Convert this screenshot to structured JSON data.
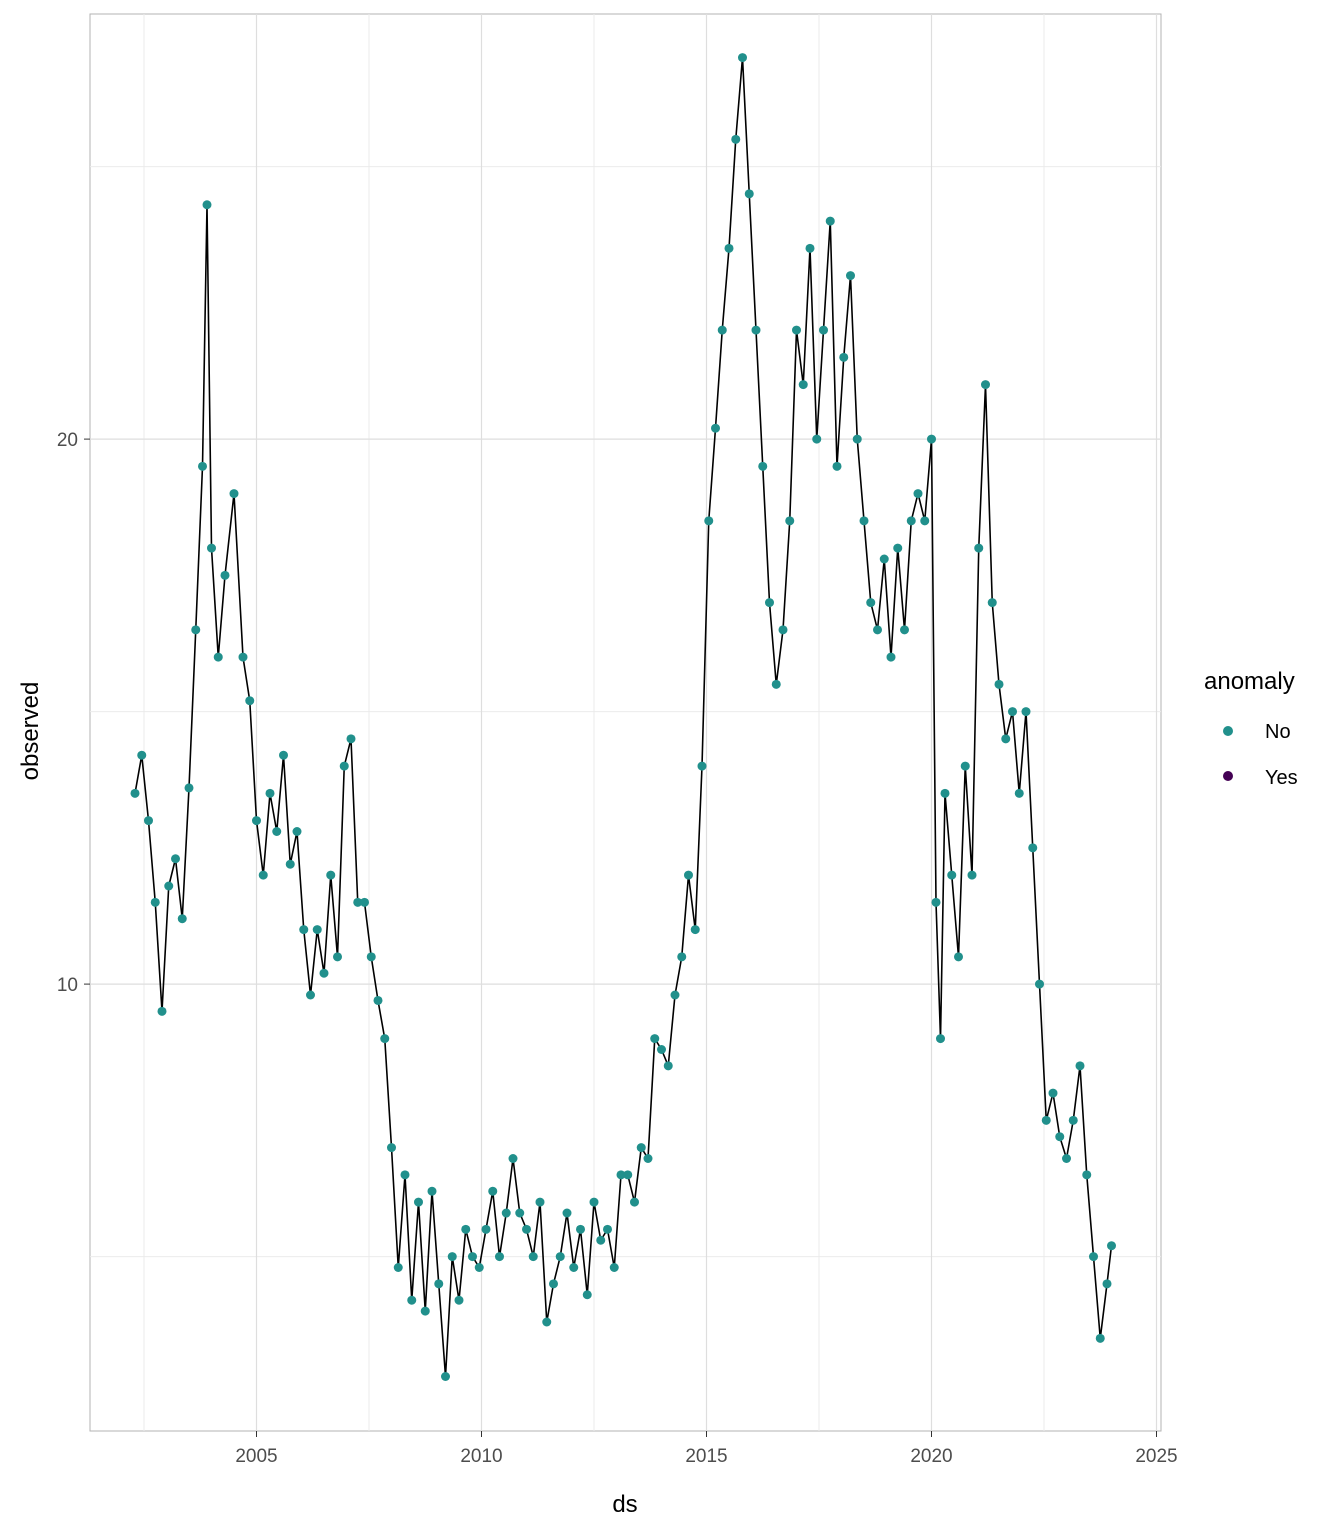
{
  "chart_data": {
    "type": "line",
    "title": "",
    "xlabel": "ds",
    "ylabel": "observed",
    "xlim": [
      2001.3,
      2025.1
    ],
    "ylim": [
      1.8,
      27.8
    ],
    "x_ticks": [
      2005,
      2010,
      2015,
      2020,
      2025
    ],
    "x_tick_labels": [
      "2005",
      "2010",
      "2015",
      "2020",
      "2025"
    ],
    "y_ticks": [
      10,
      20
    ],
    "y_tick_labels": [
      "10",
      "20"
    ],
    "y_minor_gridlines": [
      5,
      15,
      25
    ],
    "grid": true,
    "theme": "light",
    "legend": {
      "title": "anomaly",
      "position": "right",
      "entries": [
        {
          "label": "No",
          "color": "#21908C"
        },
        {
          "label": "Yes",
          "color": "#440154"
        }
      ]
    },
    "line_color": "#000000",
    "series": [
      {
        "name": "observed",
        "x": [
          2002.3,
          2002.45,
          2002.6,
          2002.75,
          2002.9,
          2003.05,
          2003.2,
          2003.35,
          2003.5,
          2003.65,
          2003.8,
          2003.9,
          2004.0,
          2004.15,
          2004.3,
          2004.5,
          2004.7,
          2004.85,
          2005.0,
          2005.15,
          2005.3,
          2005.45,
          2005.6,
          2005.75,
          2005.9,
          2006.05,
          2006.2,
          2006.35,
          2006.5,
          2006.65,
          2006.8,
          2006.95,
          2007.1,
          2007.25,
          2007.4,
          2007.55,
          2007.7,
          2007.85,
          2008.0,
          2008.15,
          2008.3,
          2008.45,
          2008.6,
          2008.75,
          2008.9,
          2009.05,
          2009.2,
          2009.35,
          2009.5,
          2009.65,
          2009.8,
          2009.95,
          2010.1,
          2010.25,
          2010.4,
          2010.55,
          2010.7,
          2010.85,
          2011.0,
          2011.15,
          2011.3,
          2011.45,
          2011.6,
          2011.75,
          2011.9,
          2012.05,
          2012.2,
          2012.35,
          2012.5,
          2012.65,
          2012.8,
          2012.95,
          2013.1,
          2013.25,
          2013.4,
          2013.55,
          2013.7,
          2013.85,
          2014.0,
          2014.15,
          2014.3,
          2014.45,
          2014.6,
          2014.75,
          2014.9,
          2015.05,
          2015.2,
          2015.35,
          2015.5,
          2015.65,
          2015.8,
          2015.95,
          2016.1,
          2016.25,
          2016.4,
          2016.55,
          2016.7,
          2016.85,
          2017.0,
          2017.15,
          2017.3,
          2017.45,
          2017.6,
          2017.75,
          2017.9,
          2018.05,
          2018.2,
          2018.35,
          2018.5,
          2018.65,
          2018.8,
          2018.95,
          2019.1,
          2019.25,
          2019.4,
          2019.55,
          2019.7,
          2019.85,
          2020.0,
          2020.1,
          2020.2,
          2020.3,
          2020.45,
          2020.6,
          2020.75,
          2020.9,
          2021.05,
          2021.2,
          2021.35,
          2021.5,
          2021.65,
          2021.8,
          2021.95,
          2022.1,
          2022.25,
          2022.4,
          2022.55,
          2022.7,
          2022.85,
          2023.0,
          2023.15,
          2023.3,
          2023.45,
          2023.6,
          2023.75,
          2023.9,
          2024.0
        ],
        "y": [
          13.5,
          14.2,
          13.0,
          11.5,
          9.5,
          11.8,
          12.3,
          11.2,
          13.6,
          16.5,
          19.5,
          24.3,
          18.0,
          16.0,
          17.5,
          19.0,
          16.0,
          15.2,
          13.0,
          12.0,
          13.5,
          12.8,
          14.2,
          12.2,
          12.8,
          11.0,
          9.8,
          11.0,
          10.2,
          12.0,
          10.5,
          14.0,
          14.5,
          11.5,
          11.5,
          10.5,
          9.7,
          9.0,
          7.0,
          4.8,
          6.5,
          4.2,
          6.0,
          4.0,
          6.2,
          4.5,
          2.8,
          5.0,
          4.2,
          5.5,
          5.0,
          4.8,
          5.5,
          6.2,
          5.0,
          5.8,
          6.8,
          5.8,
          5.5,
          5.0,
          6.0,
          3.8,
          4.5,
          5.0,
          5.8,
          4.8,
          5.5,
          4.3,
          6.0,
          5.3,
          5.5,
          4.8,
          6.5,
          6.5,
          6.0,
          7.0,
          6.8,
          9.0,
          8.8,
          8.5,
          9.8,
          10.5,
          12.0,
          11.0,
          14.0,
          18.5,
          20.2,
          22.0,
          23.5,
          25.5,
          27.0,
          24.5,
          22.0,
          19.5,
          17.0,
          15.5,
          16.5,
          18.5,
          22.0,
          21.0,
          23.5,
          20.0,
          22.0,
          24.0,
          19.5,
          21.5,
          23.0,
          20.0,
          18.5,
          17.0,
          16.5,
          17.8,
          16.0,
          18.0,
          16.5,
          18.5,
          19.0,
          18.5,
          20.0,
          11.5,
          9.0,
          13.5,
          12.0,
          10.5,
          14.0,
          12.0,
          18.0,
          21.0,
          17.0,
          15.5,
          14.5,
          15.0,
          13.5,
          15.0,
          12.5,
          10.0,
          7.5,
          8.0,
          7.2,
          6.8,
          7.5,
          8.5,
          6.5,
          5.0,
          3.5,
          4.5,
          5.2
        ]
      }
    ]
  }
}
